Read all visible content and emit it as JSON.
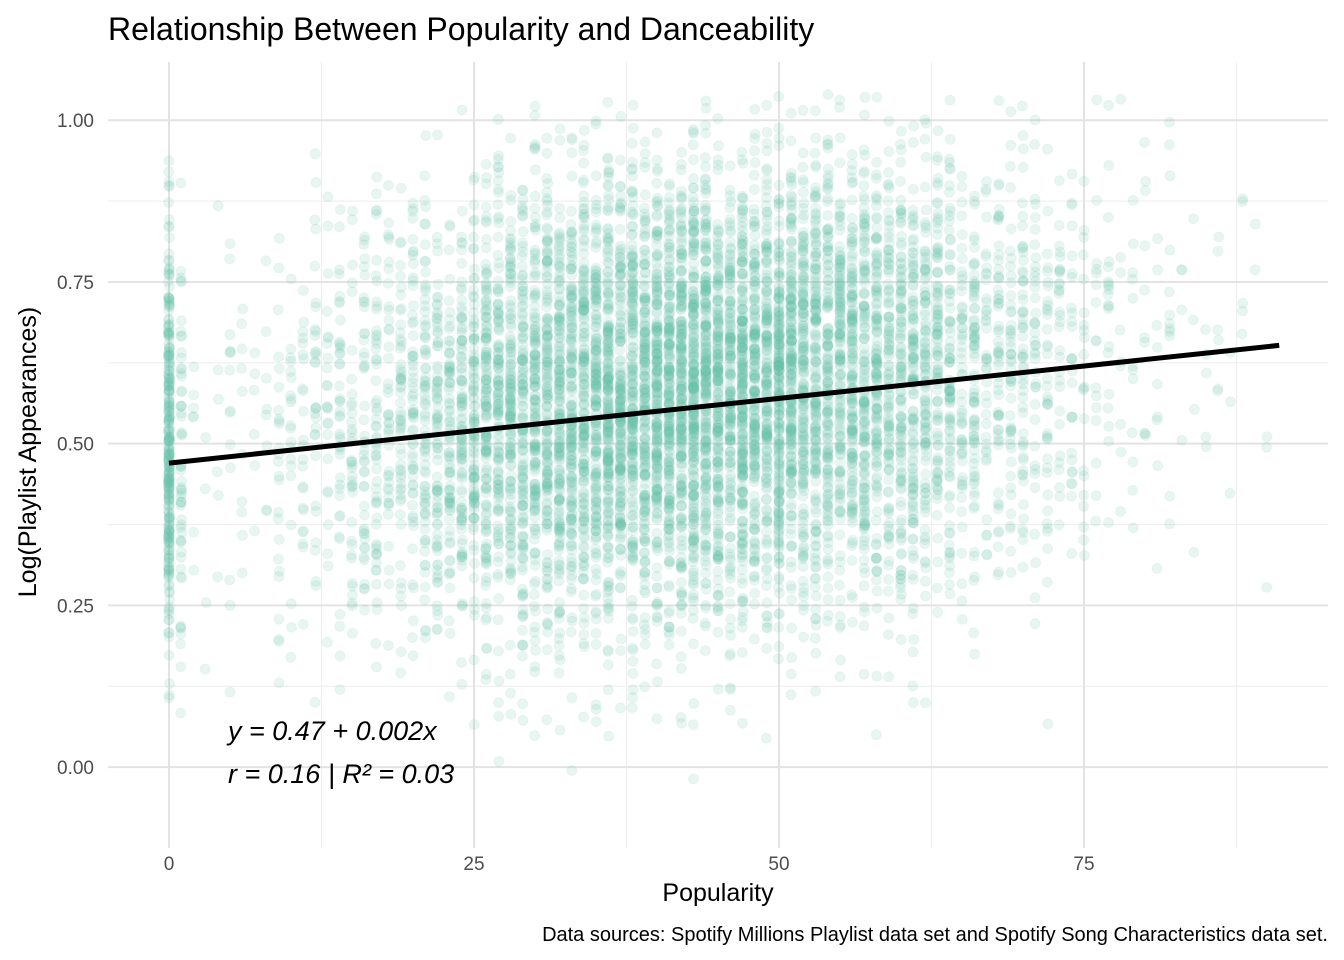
{
  "chart_data": {
    "type": "scatter",
    "title": "Relationship Between Popularity and Danceability",
    "xlabel": "Popularity",
    "ylabel": "Log(Playlist Appearances)",
    "caption": "Data sources: Spotify Millions Playlist data set and Spotify Song Characteristics data set.",
    "xlim": [
      -5,
      95
    ],
    "ylim": [
      -0.125,
      1.09
    ],
    "x_ticks": [
      {
        "value": 0,
        "label": "0"
      },
      {
        "value": 25,
        "label": "25"
      },
      {
        "value": 50,
        "label": "50"
      },
      {
        "value": 75,
        "label": "75"
      }
    ],
    "y_ticks": [
      {
        "value": 0,
        "label": "0.00"
      },
      {
        "value": 0.25,
        "label": "0.25"
      },
      {
        "value": 0.5,
        "label": "0.50"
      },
      {
        "value": 0.75,
        "label": "0.75"
      },
      {
        "value": 1.0,
        "label": "1.00"
      }
    ],
    "grid": true,
    "point_color": "#66c2a5",
    "point_alpha": 0.15,
    "points_summary": {
      "count_approx": 20000,
      "x_range": [
        0,
        91
      ],
      "y_range": [
        -0.08,
        1.04
      ],
      "x_center": 43,
      "y_center": 0.55
    },
    "regression_line": {
      "intercept": 0.47,
      "slope": 0.002,
      "x_start": 0,
      "x_end": 91,
      "color": "#000000"
    },
    "annotations": [
      "y = 0.47 + 0.002x",
      "r = 0.16 | R² = 0.03"
    ]
  }
}
